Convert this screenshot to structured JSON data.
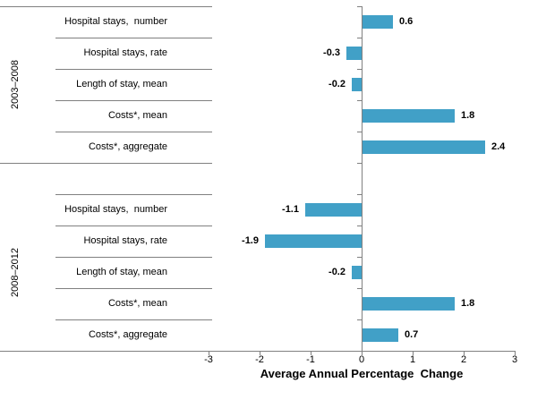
{
  "chart_data": {
    "type": "bar",
    "orientation": "horizontal",
    "title": "",
    "xlabel": "Average Annual Percentage  Change",
    "xlim": [
      -3,
      3
    ],
    "xticks": [
      -3,
      -2,
      -1,
      0,
      1,
      2,
      3
    ],
    "grid": false,
    "legend": false,
    "data_labels": true,
    "value_format": "one_decimal",
    "groups": [
      {
        "label": "2003–2008",
        "categories": [
          "Hospital stays,  number",
          "Hospital stays, rate",
          "Length of stay, mean",
          "Costs*, mean",
          "Costs*, aggregate"
        ],
        "values": [
          0.6,
          -0.3,
          -0.2,
          1.8,
          2.4
        ]
      },
      {
        "label": "2008–2012",
        "categories": [
          "Hospital stays,  number",
          "Hospital stays, rate",
          "Length of stay, mean",
          "Costs*, mean",
          "Costs*, aggregate"
        ],
        "values": [
          -1.1,
          -1.9,
          -0.2,
          1.8,
          0.7
        ]
      }
    ]
  },
  "colors": {
    "bar": "#41a0c7",
    "axis_line": "#808080",
    "text": "#000000",
    "background": "#ffffff"
  }
}
